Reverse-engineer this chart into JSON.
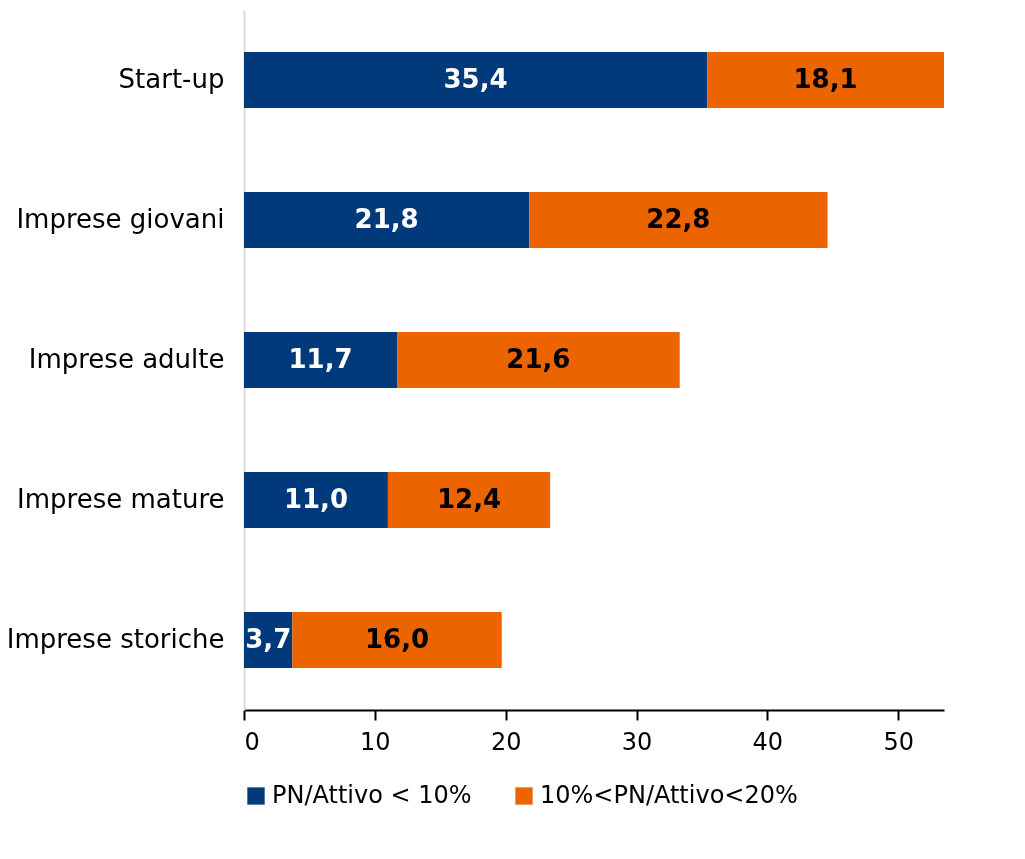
{
  "chart_data": {
    "type": "bar",
    "orientation": "horizontal",
    "stacked": true,
    "categories": [
      "Start-up",
      "Imprese giovani",
      "Imprese adulte",
      "Imprese mature",
      "Imprese storiche"
    ],
    "series": [
      {
        "name": "PN/Attivo < 10%",
        "color": "#003a7a",
        "values": [
          35.4,
          21.8,
          11.7,
          11.0,
          3.7
        ],
        "value_labels": [
          "35,4",
          "21,8",
          "11,7",
          "11,0",
          "3,7"
        ]
      },
      {
        "name": "10%<PN/Attivo<20%",
        "color": "#ec6400",
        "values": [
          18.1,
          22.8,
          21.6,
          12.4,
          16.0
        ],
        "value_labels": [
          "18,1",
          "22,8",
          "21,6",
          "12,4",
          "16,0"
        ]
      }
    ],
    "xlim": [
      0,
      53.5
    ],
    "xticks": [
      0,
      10,
      20,
      30,
      40,
      50
    ],
    "grid": false,
    "legend": "bottom"
  }
}
